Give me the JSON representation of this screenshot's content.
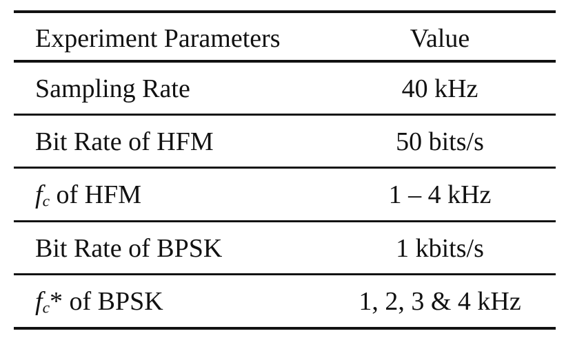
{
  "table": {
    "header": {
      "parameter": "Experiment Parameters",
      "value": "Value"
    },
    "rows": [
      {
        "param_prefix": "",
        "param_text": "Sampling Rate",
        "value": "40 kHz"
      },
      {
        "param_prefix": "",
        "param_text": "Bit Rate of HFM",
        "value": "50 bits/s"
      },
      {
        "param_prefix": "f_c",
        "math_base": "f",
        "math_sub": "c",
        "param_text": " of HFM",
        "value": "1 – 4 kHz"
      },
      {
        "param_prefix": "",
        "param_text": "Bit Rate of BPSK",
        "value": "1 kbits/s"
      },
      {
        "param_prefix": "f_c",
        "math_base": "f",
        "math_sub": "c",
        "param_text": "* of BPSK",
        "value": "1, 2, 3 & 4 kHz"
      }
    ]
  }
}
